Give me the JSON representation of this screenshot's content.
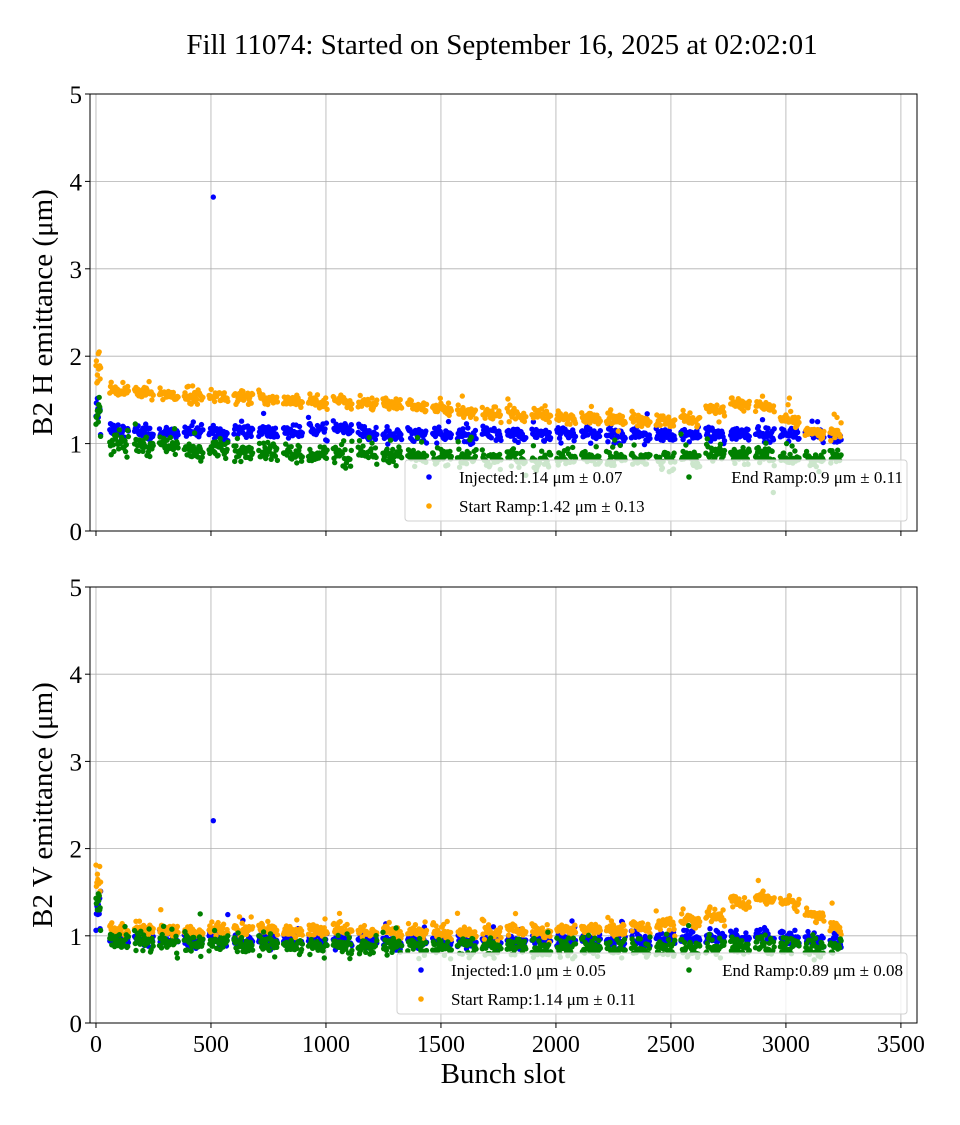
{
  "title": "Fill 11074: Started on September 16, 2025 at 02:02:01",
  "colors": {
    "injected": "#0000ff",
    "start_ramp": "#ffa500",
    "end_ramp": "#008000"
  },
  "chart_data": [
    {
      "type": "scatter",
      "ylabel": "B2 H emittance (μm)",
      "xlabel": "",
      "xlim": [
        -26,
        3570
      ],
      "ylim": [
        0,
        5
      ],
      "xticks": [
        0,
        500,
        1000,
        1500,
        2000,
        2500,
        3000,
        3500
      ],
      "yticks": [
        "0",
        "1",
        "2",
        "3",
        "4",
        "5"
      ],
      "grid": true,
      "legend_placement": "lower-right",
      "legend": [
        {
          "series": "injected",
          "label": "Injected:1.14 μm ± 0.07"
        },
        {
          "series": "start_ramp",
          "label": "Start Ramp:1.42 μm ± 0.13"
        },
        {
          "series": "end_ramp",
          "label": "End Ramp:0.9 μm ± 0.11"
        }
      ],
      "pilot": {
        "slots": [
          0,
          20
        ],
        "injected": 1.35,
        "start_ramp": 1.9,
        "end_ramp": 1.38
      },
      "train_slot_ranges": "trains of ~80 bunch slots every ~108 slots from slot 60 to ~3240",
      "train_means": {
        "injected": [
          1.18,
          1.15,
          1.14,
          1.16,
          1.14,
          1.17,
          1.15,
          1.16,
          1.18,
          1.18,
          1.14,
          1.12,
          1.13,
          1.12,
          1.11,
          1.13,
          1.12,
          1.12,
          1.13,
          1.13,
          1.12,
          1.13,
          1.11,
          1.12,
          1.13,
          1.13,
          1.12,
          1.12,
          1.12,
          1.08
        ],
        "start_ramp": [
          1.63,
          1.6,
          1.58,
          1.57,
          1.56,
          1.55,
          1.53,
          1.52,
          1.51,
          1.5,
          1.48,
          1.46,
          1.45,
          1.42,
          1.38,
          1.37,
          1.36,
          1.34,
          1.32,
          1.31,
          1.3,
          1.28,
          1.27,
          1.3,
          1.4,
          1.47,
          1.44,
          1.3,
          1.16,
          1.12
        ],
        "end_ramp": [
          1.02,
          1.0,
          0.98,
          0.95,
          0.94,
          0.92,
          0.92,
          0.9,
          0.9,
          0.88,
          0.87,
          0.87,
          0.86,
          0.85,
          0.85,
          0.85,
          0.85,
          0.84,
          0.85,
          0.85,
          0.85,
          0.85,
          0.84,
          0.86,
          0.9,
          0.88,
          0.88,
          0.86,
          0.85,
          0.85
        ]
      },
      "outliers": [
        {
          "series": "injected",
          "x": 510,
          "y": 3.82
        },
        {
          "series": "end_ramp",
          "x": 2945,
          "y": 0.44
        }
      ]
    },
    {
      "type": "scatter",
      "ylabel": "B2 V emittance (μm)",
      "xlabel": "Bunch slot",
      "xlim": [
        -26,
        3570
      ],
      "ylim": [
        0,
        5
      ],
      "xticks": [
        0,
        500,
        1000,
        1500,
        2000,
        2500,
        3000,
        3500
      ],
      "yticks": [
        "0",
        "1",
        "2",
        "3",
        "4",
        "5"
      ],
      "grid": true,
      "legend_placement": "lower-right",
      "legend": [
        {
          "series": "injected",
          "label": "Injected:1.0 μm ± 0.05"
        },
        {
          "series": "start_ramp",
          "label": "Start Ramp:1.14 μm ± 0.11"
        },
        {
          "series": "end_ramp",
          "label": "End Ramp:0.89 μm ± 0.08"
        }
      ],
      "pilot": {
        "slots": [
          0,
          20
        ],
        "injected": 1.25,
        "start_ramp": 1.65,
        "end_ramp": 1.35
      },
      "train_means": {
        "injected": [
          0.98,
          0.97,
          0.97,
          0.97,
          0.98,
          0.97,
          0.96,
          0.96,
          0.95,
          0.95,
          0.96,
          0.95,
          0.95,
          0.94,
          0.95,
          0.95,
          0.95,
          0.96,
          0.96,
          0.96,
          0.97,
          0.98,
          0.99,
          1.0,
          1.0,
          1.01,
          1.01,
          1.0,
          0.98,
          0.97
        ],
        "start_ramp": [
          1.08,
          1.08,
          1.08,
          1.07,
          1.08,
          1.09,
          1.09,
          1.08,
          1.08,
          1.08,
          1.07,
          1.07,
          1.07,
          1.06,
          1.05,
          1.06,
          1.08,
          1.08,
          1.08,
          1.09,
          1.1,
          1.13,
          1.15,
          1.18,
          1.25,
          1.4,
          1.45,
          1.4,
          1.26,
          1.12
        ],
        "end_ramp": [
          0.96,
          0.95,
          0.94,
          0.93,
          0.93,
          0.92,
          0.92,
          0.91,
          0.9,
          0.9,
          0.89,
          0.89,
          0.88,
          0.88,
          0.88,
          0.88,
          0.88,
          0.88,
          0.88,
          0.88,
          0.88,
          0.88,
          0.88,
          0.88,
          0.89,
          0.9,
          0.9,
          0.89,
          0.88,
          0.88
        ]
      },
      "outliers": [
        {
          "series": "injected",
          "x": 510,
          "y": 2.32
        }
      ]
    }
  ]
}
